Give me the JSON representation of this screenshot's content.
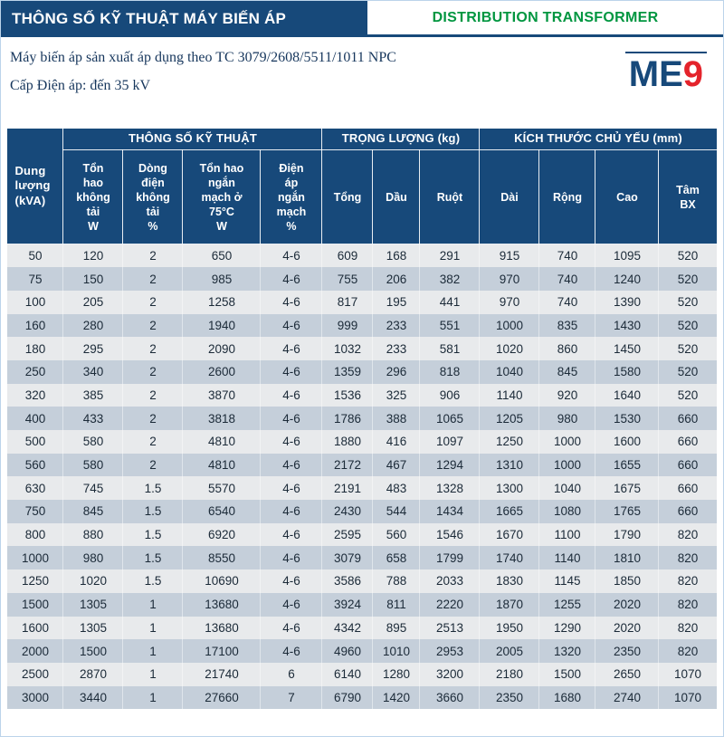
{
  "colors": {
    "navy": "#17497a",
    "green": "#009640",
    "red": "#e4232b",
    "row_light": "#e8eaec",
    "row_dark": "#c5cfda"
  },
  "header": {
    "title_vi": "THÔNG SỐ KỸ THUẬT MÁY BIẾN ÁP",
    "title_en": "DISTRIBUTION TRANSFORMER",
    "subtitle1": "Máy biến áp sản xuất áp dụng theo TC 3079/2608/5511/1011 NPC",
    "subtitle2": "Cấp Điện áp: đến 35 kV"
  },
  "logo": {
    "me": "ME",
    "nine": "9",
    "watermark": "ME9"
  },
  "table": {
    "col_capacity": "Dung\nlượng\n(kVA)",
    "group1": "THÔNG SỐ KỸ THUẬT",
    "group2": "TRỌNG LƯỢNG (kg)",
    "group3": "KÍCH THƯỚC CHỦ YẾU (mm)",
    "columns": [
      "Tổn\nhao\nkhông\ntải\nW",
      "Dòng\nđiện\nkhông\ntải\n%",
      "Tổn hao\nngắn\nmạch ở\n75°C\nW",
      "Điện\náp\nngắn\nmạch\n%",
      "Tổng",
      "Dầu",
      "Ruột",
      "Dài",
      "Rộng",
      "Cao",
      "Tâm\nBX"
    ],
    "rows": [
      [
        "50",
        "120",
        "2",
        "650",
        "4-6",
        "609",
        "168",
        "291",
        "915",
        "740",
        "1095",
        "520"
      ],
      [
        "75",
        "150",
        "2",
        "985",
        "4-6",
        "755",
        "206",
        "382",
        "970",
        "740",
        "1240",
        "520"
      ],
      [
        "100",
        "205",
        "2",
        "1258",
        "4-6",
        "817",
        "195",
        "441",
        "970",
        "740",
        "1390",
        "520"
      ],
      [
        "160",
        "280",
        "2",
        "1940",
        "4-6",
        "999",
        "233",
        "551",
        "1000",
        "835",
        "1430",
        "520"
      ],
      [
        "180",
        "295",
        "2",
        "2090",
        "4-6",
        "1032",
        "233",
        "581",
        "1020",
        "860",
        "1450",
        "520"
      ],
      [
        "250",
        "340",
        "2",
        "2600",
        "4-6",
        "1359",
        "296",
        "818",
        "1040",
        "845",
        "1580",
        "520"
      ],
      [
        "320",
        "385",
        "2",
        "3870",
        "4-6",
        "1536",
        "325",
        "906",
        "1140",
        "920",
        "1640",
        "520"
      ],
      [
        "400",
        "433",
        "2",
        "3818",
        "4-6",
        "1786",
        "388",
        "1065",
        "1205",
        "980",
        "1530",
        "660"
      ],
      [
        "500",
        "580",
        "2",
        "4810",
        "4-6",
        "1880",
        "416",
        "1097",
        "1250",
        "1000",
        "1600",
        "660"
      ],
      [
        "560",
        "580",
        "2",
        "4810",
        "4-6",
        "2172",
        "467",
        "1294",
        "1310",
        "1000",
        "1655",
        "660"
      ],
      [
        "630",
        "745",
        "1.5",
        "5570",
        "4-6",
        "2191",
        "483",
        "1328",
        "1300",
        "1040",
        "1675",
        "660"
      ],
      [
        "750",
        "845",
        "1.5",
        "6540",
        "4-6",
        "2430",
        "544",
        "1434",
        "1665",
        "1080",
        "1765",
        "660"
      ],
      [
        "800",
        "880",
        "1.5",
        "6920",
        "4-6",
        "2595",
        "560",
        "1546",
        "1670",
        "1100",
        "1790",
        "820"
      ],
      [
        "1000",
        "980",
        "1.5",
        "8550",
        "4-6",
        "3079",
        "658",
        "1799",
        "1740",
        "1140",
        "1810",
        "820"
      ],
      [
        "1250",
        "1020",
        "1.5",
        "10690",
        "4-6",
        "3586",
        "788",
        "2033",
        "1830",
        "1145",
        "1850",
        "820"
      ],
      [
        "1500",
        "1305",
        "1",
        "13680",
        "4-6",
        "3924",
        "811",
        "2220",
        "1870",
        "1255",
        "2020",
        "820"
      ],
      [
        "1600",
        "1305",
        "1",
        "13680",
        "4-6",
        "4342",
        "895",
        "2513",
        "1950",
        "1290",
        "2020",
        "820"
      ],
      [
        "2000",
        "1500",
        "1",
        "17100",
        "4-6",
        "4960",
        "1010",
        "2953",
        "2005",
        "1320",
        "2350",
        "820"
      ],
      [
        "2500",
        "2870",
        "1",
        "21740",
        "6",
        "6140",
        "1280",
        "3200",
        "2180",
        "1500",
        "2650",
        "1070"
      ],
      [
        "3000",
        "3440",
        "1",
        "27660",
        "7",
        "6790",
        "1420",
        "3660",
        "2350",
        "1680",
        "2740",
        "1070"
      ]
    ]
  }
}
